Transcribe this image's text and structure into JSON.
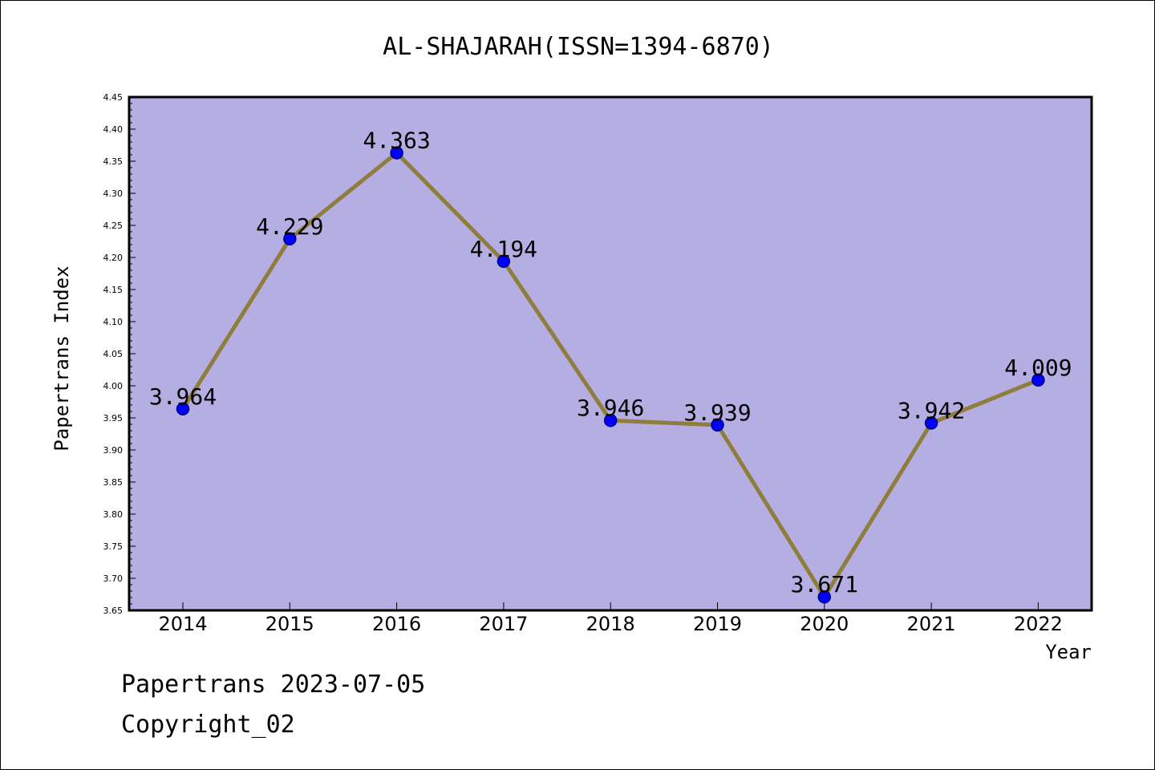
{
  "chart_data": {
    "type": "line",
    "title": "AL-SHAJARAH(ISSN=1394-6870)",
    "xlabel": "Year",
    "ylabel": "Papertrans Index",
    "categories": [
      "2014",
      "2015",
      "2016",
      "2017",
      "2018",
      "2019",
      "2020",
      "2021",
      "2022"
    ],
    "series": [
      {
        "values": [
          3.964,
          4.229,
          4.363,
          4.194,
          3.946,
          3.939,
          3.671,
          3.942,
          4.009
        ],
        "labels": [
          "3.964",
          "4.229",
          "4.363",
          "4.194",
          "3.946",
          "3.939",
          "3.671",
          "3.942",
          "4.009"
        ]
      }
    ],
    "ylim": [
      3.65,
      4.45
    ],
    "yticks": [
      "3.65",
      "3.70",
      "3.75",
      "3.80",
      "3.85",
      "3.90",
      "3.95",
      "4.00",
      "4.05",
      "4.10",
      "4.15",
      "4.20",
      "4.25",
      "4.30",
      "4.35",
      "4.40",
      "4.45"
    ],
    "grid": false,
    "legend": "none",
    "colors": {
      "plot_background": "#b5aee3",
      "line": "#8f7d3c",
      "marker": "#0000ff",
      "marker_edge": "#000080"
    }
  },
  "footer": {
    "line1": "Papertrans 2023-07-05",
    "line2": "Copyright_02"
  }
}
